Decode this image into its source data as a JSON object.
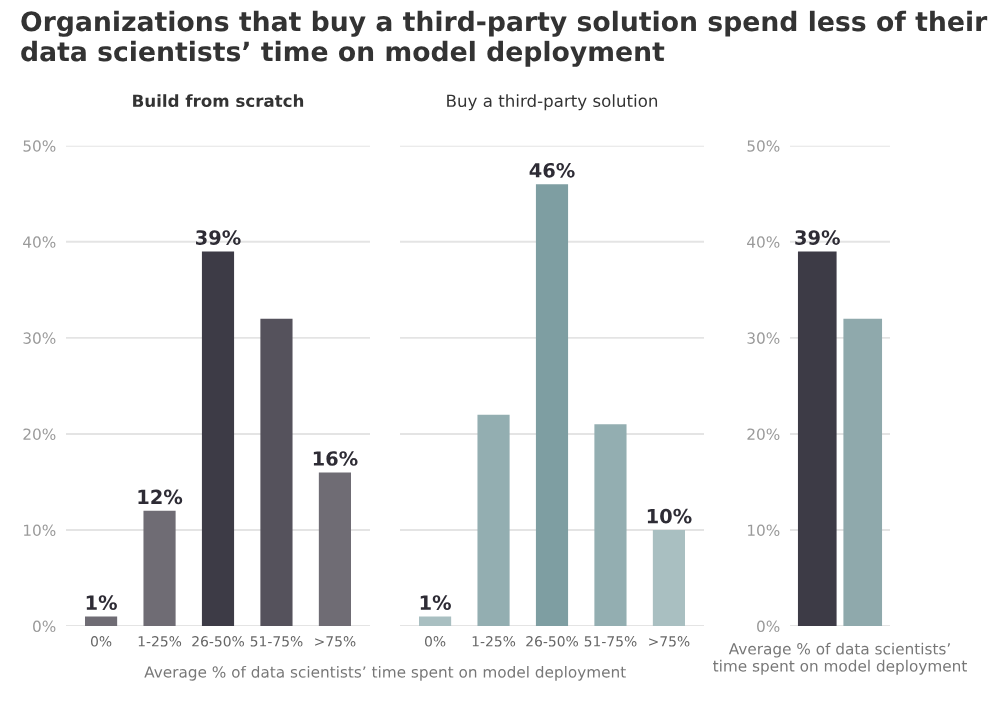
{
  "chart_data": [
    {
      "type": "bar",
      "title": "Organizations that buy a third-party solution spend less of their data scientists’ time on model deployment",
      "subtitle": "Build from scratch",
      "xlabel": "Average % of data scientists’ time spent on model deployment",
      "categories": [
        "0%",
        "1-25%",
        "26-50%",
        "51-75%",
        ">75%"
      ],
      "values": [
        1,
        12,
        39,
        32,
        16
      ],
      "colors": [
        "#6f6c74",
        "#6f6c74",
        "#3d3b46",
        "#55525c",
        "#6f6c74"
      ],
      "value_labels": [
        "1%",
        "12%",
        "39%",
        null,
        "16%"
      ],
      "ylim": [
        0,
        50
      ],
      "yticks": [
        {
          "value": 0,
          "label": "0%"
        },
        {
          "value": 10,
          "label": "10%"
        },
        {
          "value": 20,
          "label": "20%"
        },
        {
          "value": 30,
          "label": "30%"
        },
        {
          "value": 40,
          "label": "40%"
        },
        {
          "value": 50,
          "label": "50%"
        }
      ],
      "grid": "y"
    },
    {
      "type": "bar",
      "subtitle": "Buy a third-party solution",
      "categories": [
        "0%",
        "1-25%",
        "26-50%",
        "51-75%",
        ">75%"
      ],
      "values": [
        1,
        22,
        46,
        21,
        10
      ],
      "colors": [
        "#a9bfc1",
        "#93aeb1",
        "#7e9ea2",
        "#93aeb1",
        "#a9bfc1"
      ],
      "value_labels": [
        "1%",
        null,
        "46%",
        null,
        "10%"
      ],
      "ylim": [
        0,
        50
      ],
      "yticks": [
        {
          "value": 0,
          "label": null
        },
        {
          "value": 10,
          "label": null
        },
        {
          "value": 20,
          "label": null
        },
        {
          "value": 30,
          "label": null
        },
        {
          "value": 40,
          "label": null
        },
        {
          "value": 50,
          "label": null
        }
      ],
      "grid": "y",
      "tick_labels": "x"
    },
    {
      "type": "bar",
      "xlabel": "Average % of data scientists’\ntime spent on model deployment",
      "categories": [
        null,
        null
      ],
      "values": [
        39,
        32
      ],
      "colors": [
        "#3d3b46",
        "#8fa9ac"
      ],
      "value_labels": [
        "39%",
        null
      ],
      "ylim": [
        0,
        50
      ],
      "yticks": [
        {
          "value": 0,
          "label": "0%"
        },
        {
          "value": 10,
          "label": "10%"
        },
        {
          "value": 20,
          "label": "20%"
        },
        {
          "value": 30,
          "label": "30%"
        },
        {
          "value": 40,
          "label": "40%"
        },
        {
          "value": 50,
          "label": "50%"
        }
      ],
      "grid": "y",
      "tick_labels": "y"
    }
  ]
}
